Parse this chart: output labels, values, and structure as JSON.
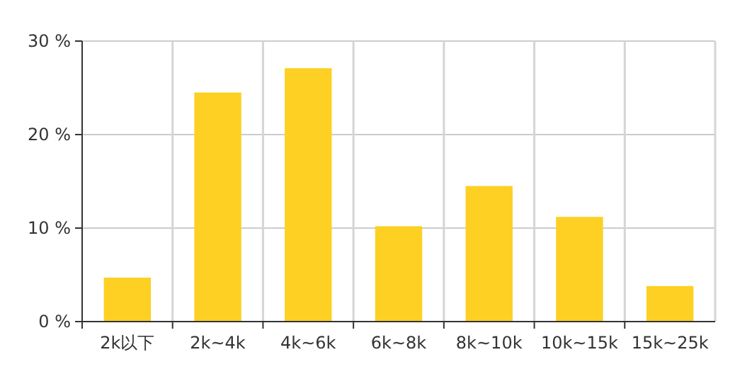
{
  "chart_data": {
    "type": "bar",
    "categories": [
      "2k以下",
      "2k~4k",
      "4k~6k",
      "6k~8k",
      "8k~10k",
      "10k~15k",
      "15k~25k"
    ],
    "values": [
      4.7,
      24.5,
      27.1,
      10.2,
      14.5,
      11.2,
      3.8
    ],
    "color": "#fdd023",
    "ylim": [
      0,
      30
    ],
    "yticks": [
      {
        "value": 0,
        "label": "0 %"
      },
      {
        "value": 10,
        "label": "10 %"
      },
      {
        "value": 20,
        "label": "20 %"
      },
      {
        "value": 30,
        "label": "30 %"
      }
    ],
    "grid": true
  }
}
